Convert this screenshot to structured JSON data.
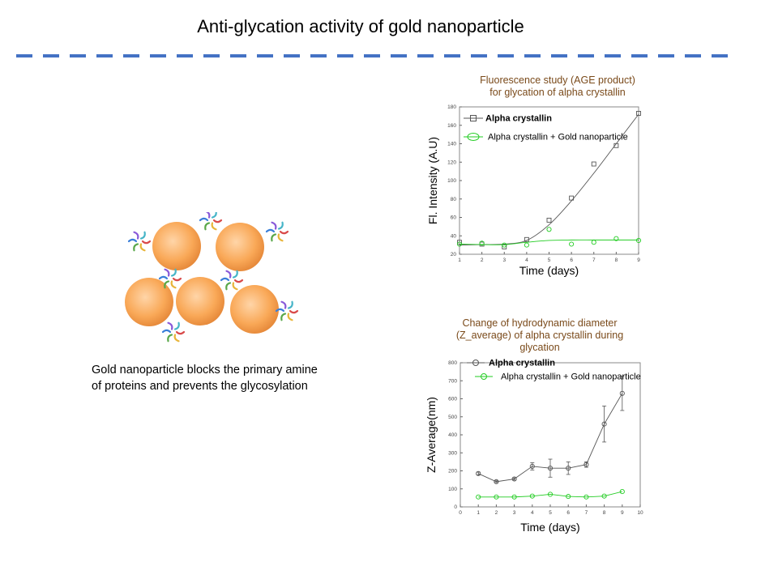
{
  "slide": {
    "title": "Anti-glycation activity of gold nanoparticle",
    "caption_line1": "Gold nanoparticle blocks the primary amine",
    "caption_line2": "of proteins and prevents the glycosylation"
  },
  "colors": {
    "divider": "#4472c4",
    "title_text": "#7a4a1a",
    "series_alpha": "#555555",
    "series_gold": "#22cc22",
    "nanoparticle": "#f9a857"
  },
  "chart_data": [
    {
      "type": "scatter",
      "title_line1": "Fluorescence study (AGE product)",
      "title_line2": "for glycation of alpha crystallin",
      "xlabel": "Time (days)",
      "ylabel": "Fl. Intensity (A.U)",
      "xlim": [
        1,
        9
      ],
      "ylim": [
        20,
        180
      ],
      "xticks": [
        1,
        2,
        3,
        4,
        5,
        6,
        7,
        8,
        9
      ],
      "yticks": [
        20,
        40,
        60,
        80,
        100,
        120,
        140,
        160,
        180
      ],
      "legend_position": "top-left",
      "series": [
        {
          "name": "Alpha crystallin",
          "marker": "square",
          "x": [
            1,
            2,
            3,
            4,
            5,
            6,
            7,
            8,
            9
          ],
          "y": [
            33,
            31,
            28,
            36,
            57,
            81,
            118,
            138,
            173
          ],
          "fit": [
            [
              1,
              30
            ],
            [
              2,
              30.5
            ],
            [
              3,
              31
            ],
            [
              4,
              35
            ],
            [
              5,
              52
            ],
            [
              6,
              78
            ],
            [
              7,
              108
            ],
            [
              8,
              140
            ],
            [
              9,
              172
            ]
          ]
        },
        {
          "name": "Alpha crystallin + Gold nanoparticle",
          "marker": "circle",
          "x": [
            1,
            2,
            3,
            4,
            5,
            6,
            7,
            8,
            9
          ],
          "y": [
            31,
            32,
            30,
            30,
            47,
            31,
            33,
            37,
            35
          ],
          "fit": [
            [
              1,
              31
            ],
            [
              2,
              30.5
            ],
            [
              3,
              30.5
            ],
            [
              4,
              33
            ],
            [
              5,
              35
            ],
            [
              6,
              35.5
            ],
            [
              7,
              35.5
            ],
            [
              8,
              35.5
            ],
            [
              9,
              35.5
            ]
          ]
        }
      ]
    },
    {
      "type": "line",
      "title_line1": "Change of hydrodynamic diameter",
      "title_line2": "(Z_average) of alpha crystallin during",
      "title_line3": "glycation",
      "xlabel": "Time (days)",
      "ylabel": "Z-Average(nm)",
      "xlim": [
        0,
        10
      ],
      "ylim": [
        0,
        800
      ],
      "xticks": [
        0,
        1,
        2,
        3,
        4,
        5,
        6,
        7,
        8,
        9,
        10
      ],
      "yticks": [
        0,
        100,
        200,
        300,
        400,
        500,
        600,
        700,
        800
      ],
      "legend_position": "top-right",
      "series": [
        {
          "name": "Alpha crystallin",
          "marker": "circle",
          "x": [
            1,
            2,
            3,
            4,
            5,
            6,
            7,
            8,
            9
          ],
          "y": [
            185,
            140,
            155,
            225,
            215,
            215,
            235,
            460,
            630
          ],
          "err": [
            8,
            5,
            6,
            20,
            50,
            35,
            15,
            100,
            95
          ]
        },
        {
          "name": "Alpha crystallin + Gold nanoparticle",
          "marker": "circle",
          "x": [
            1,
            2,
            3,
            4,
            5,
            6,
            7,
            8,
            9
          ],
          "y": [
            55,
            55,
            55,
            60,
            70,
            58,
            55,
            60,
            85
          ],
          "err": [
            0,
            0,
            0,
            0,
            0,
            0,
            0,
            0,
            0
          ]
        }
      ]
    }
  ]
}
